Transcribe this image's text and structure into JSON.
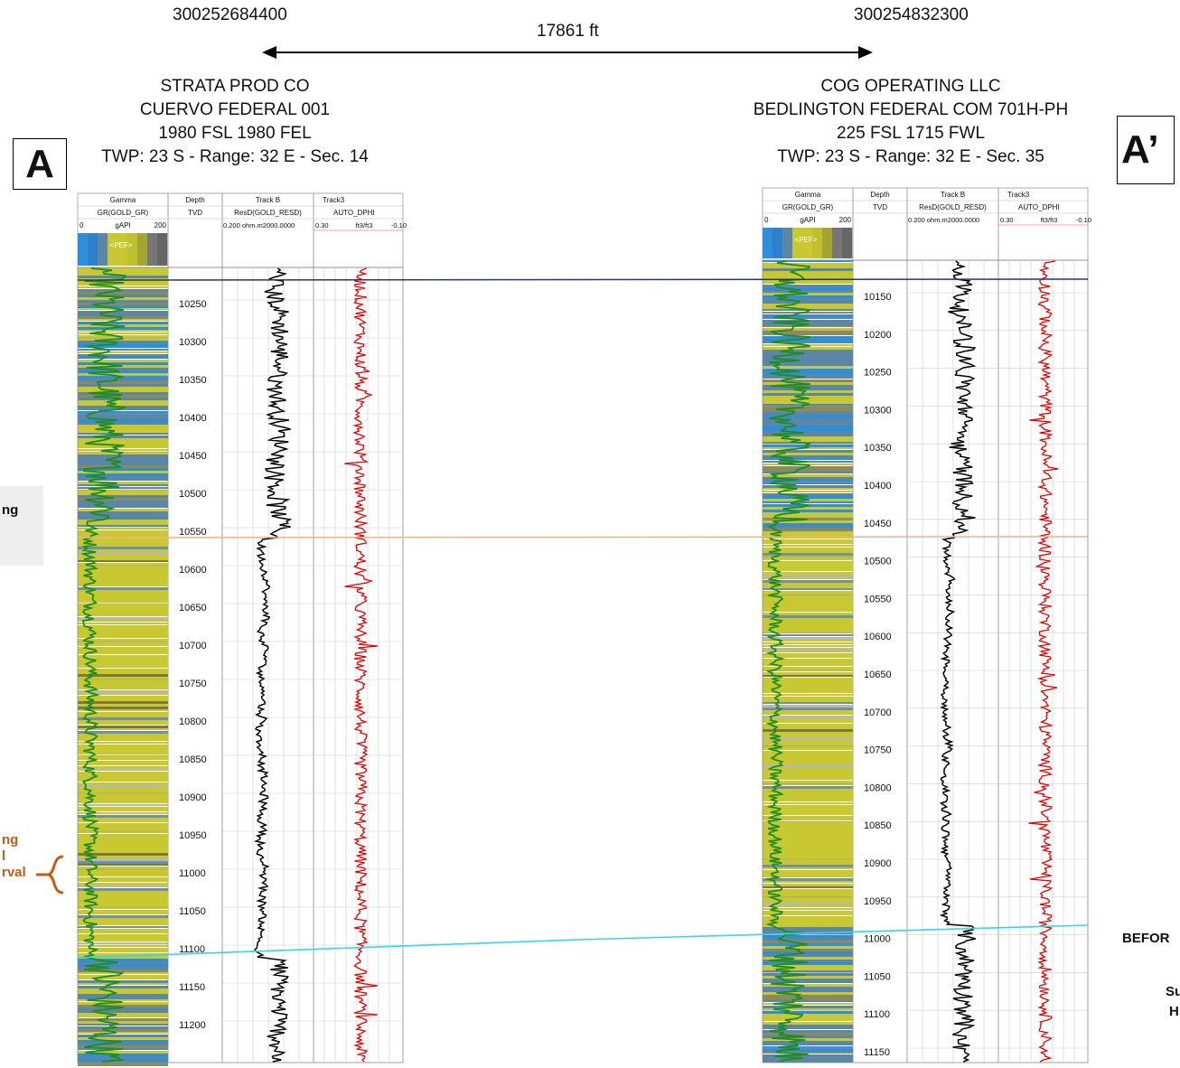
{
  "header": {
    "left_api": "300252684400",
    "right_api": "300254832300",
    "distance": "17861 ft"
  },
  "wells": [
    {
      "operator": "STRATA PROD CO",
      "name": "CUERVO FEDERAL 001",
      "location": "1980 FSL 1980 FEL",
      "twp": "TWP: 23  S - Range: 32 E - Sec. 14",
      "label": "A",
      "depth_ticks": [
        10250,
        10300,
        10350,
        10400,
        10450,
        10500,
        10550,
        10600,
        10650,
        10700,
        10750,
        10800,
        10850,
        10900,
        10950,
        11000,
        11050,
        11100,
        11150,
        11200
      ]
    },
    {
      "operator": "COG OPERATING LLC",
      "name": "BEDLINGTON FEDERAL COM 701H-PH",
      "location": "225 FSL 1715 FWL",
      "twp": "TWP: 23  S - Range: 32 E - Sec. 35",
      "label": "A’",
      "depth_ticks": [
        10150,
        10200,
        10250,
        10300,
        10350,
        10400,
        10450,
        10500,
        10550,
        10600,
        10650,
        10700,
        10750,
        10800,
        10850,
        10900,
        10950,
        11000,
        11050,
        11100,
        11150
      ]
    }
  ],
  "track_header": {
    "gamma_title": "Gamma",
    "gamma_curve": "GR(GOLD_GR)",
    "gamma_unit": "gAPI",
    "gamma_min": "0",
    "gamma_max": "200",
    "pef_label": "<PEF>",
    "depth_title": "Depth",
    "depth_ref": "TVD",
    "trackb_title": "Track B",
    "trackb_curve": "ResD(GOLD_RESD)",
    "trackb_scale": "0.200   ohm.m2000.0000",
    "track3_title": "Track3",
    "track3_curve": "AUTO_DPHI",
    "track3_min": "0.30",
    "track3_unit": "ft3/ft3",
    "track3_max": "-0.10"
  },
  "annotations": {
    "left_box_text": "ng",
    "orange_text": [
      "ng",
      "l",
      "rval"
    ],
    "right_text_1": "BEFOR",
    "right_text_2": "Su",
    "right_text_3": "H"
  },
  "colors": {
    "top_line": "#1f3864",
    "mid_line": "#f4b183",
    "base_line": "#33d6e8",
    "orange": "#c55a11",
    "gamma_curve": "#1e8c1e",
    "dphi_curve": "#e00000",
    "shale": "#c8c832",
    "lime": "#5a87a8",
    "blue": "#2e8fd8"
  }
}
